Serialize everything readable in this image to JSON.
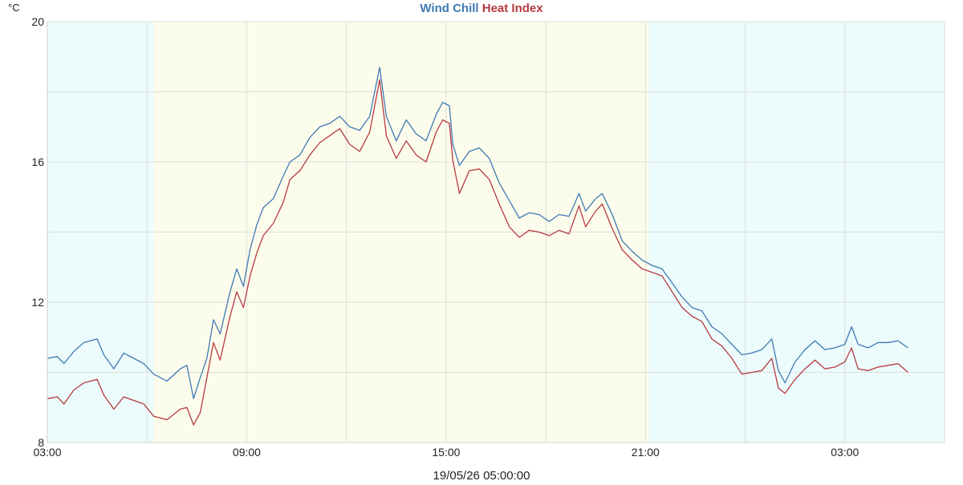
{
  "chart_data": {
    "type": "line",
    "title_parts": [
      {
        "text": "Wind Chill",
        "color": "#3f79b4"
      },
      {
        "text": "Heat Index",
        "color": "#b63a40"
      }
    ],
    "ylabel": "°C",
    "xlabel": "19/05/26 05:00:00",
    "ylim": [
      8,
      20
    ],
    "y_ticks": [
      "8",
      "12",
      "16",
      "20"
    ],
    "grid": true,
    "x_range_hours": [
      3,
      30
    ],
    "x_ticks": [
      {
        "h": 3,
        "label": "03:00"
      },
      {
        "h": 9,
        "label": "09:00"
      },
      {
        "h": 15,
        "label": "15:00"
      },
      {
        "h": 21,
        "label": "21:00"
      },
      {
        "h": 27,
        "label": "03:00"
      }
    ],
    "daylight_bands": [
      {
        "from": 3,
        "to": 6.2,
        "kind": "night"
      },
      {
        "from": 6.2,
        "to": 21.1,
        "kind": "day"
      },
      {
        "from": 21.1,
        "to": 30,
        "kind": "night"
      }
    ],
    "band_colors": {
      "night": "#ecfbfb",
      "day": "#fcfcec"
    },
    "series": [
      {
        "name": "Wind Chill",
        "color": "#3f79b4",
        "points": [
          [
            3.0,
            10.4
          ],
          [
            3.3,
            10.45
          ],
          [
            3.5,
            10.25
          ],
          [
            3.8,
            10.6
          ],
          [
            4.1,
            10.85
          ],
          [
            4.5,
            10.95
          ],
          [
            4.7,
            10.5
          ],
          [
            5.0,
            10.1
          ],
          [
            5.3,
            10.55
          ],
          [
            5.6,
            10.4
          ],
          [
            5.9,
            10.25
          ],
          [
            6.2,
            9.95
          ],
          [
            6.6,
            9.75
          ],
          [
            7.0,
            10.1
          ],
          [
            7.2,
            10.2
          ],
          [
            7.4,
            9.25
          ],
          [
            7.6,
            9.85
          ],
          [
            7.8,
            10.4
          ],
          [
            8.0,
            11.5
          ],
          [
            8.2,
            11.1
          ],
          [
            8.5,
            12.3
          ],
          [
            8.7,
            12.95
          ],
          [
            8.9,
            12.45
          ],
          [
            9.1,
            13.5
          ],
          [
            9.3,
            14.2
          ],
          [
            9.5,
            14.7
          ],
          [
            9.8,
            14.95
          ],
          [
            10.1,
            15.6
          ],
          [
            10.3,
            16.0
          ],
          [
            10.6,
            16.2
          ],
          [
            10.9,
            16.7
          ],
          [
            11.2,
            17.0
          ],
          [
            11.5,
            17.1
          ],
          [
            11.8,
            17.3
          ],
          [
            12.1,
            17.0
          ],
          [
            12.4,
            16.9
          ],
          [
            12.7,
            17.3
          ],
          [
            13.0,
            18.7
          ],
          [
            13.2,
            17.3
          ],
          [
            13.5,
            16.6
          ],
          [
            13.8,
            17.2
          ],
          [
            14.1,
            16.8
          ],
          [
            14.4,
            16.6
          ],
          [
            14.7,
            17.35
          ],
          [
            14.9,
            17.7
          ],
          [
            15.1,
            17.6
          ],
          [
            15.2,
            16.5
          ],
          [
            15.4,
            15.9
          ],
          [
            15.7,
            16.3
          ],
          [
            16.0,
            16.4
          ],
          [
            16.3,
            16.1
          ],
          [
            16.6,
            15.4
          ],
          [
            16.9,
            14.9
          ],
          [
            17.2,
            14.4
          ],
          [
            17.5,
            14.55
          ],
          [
            17.8,
            14.5
          ],
          [
            18.1,
            14.3
          ],
          [
            18.4,
            14.5
          ],
          [
            18.7,
            14.45
          ],
          [
            19.0,
            15.1
          ],
          [
            19.2,
            14.6
          ],
          [
            19.5,
            14.95
          ],
          [
            19.7,
            15.1
          ],
          [
            20.0,
            14.5
          ],
          [
            20.3,
            13.75
          ],
          [
            20.6,
            13.45
          ],
          [
            20.9,
            13.2
          ],
          [
            21.2,
            13.05
          ],
          [
            21.5,
            12.95
          ],
          [
            21.8,
            12.55
          ],
          [
            22.1,
            12.15
          ],
          [
            22.4,
            11.85
          ],
          [
            22.7,
            11.75
          ],
          [
            23.0,
            11.3
          ],
          [
            23.3,
            11.1
          ],
          [
            23.6,
            10.8
          ],
          [
            23.9,
            10.5
          ],
          [
            24.2,
            10.55
          ],
          [
            24.5,
            10.65
          ],
          [
            24.8,
            10.95
          ],
          [
            25.0,
            10.05
          ],
          [
            25.2,
            9.7
          ],
          [
            25.5,
            10.3
          ],
          [
            25.8,
            10.65
          ],
          [
            26.1,
            10.9
          ],
          [
            26.4,
            10.65
          ],
          [
            26.7,
            10.7
          ],
          [
            27.0,
            10.8
          ],
          [
            27.2,
            11.3
          ],
          [
            27.4,
            10.8
          ],
          [
            27.7,
            10.7
          ],
          [
            28.0,
            10.85
          ],
          [
            28.3,
            10.85
          ],
          [
            28.6,
            10.9
          ],
          [
            28.9,
            10.7
          ]
        ]
      },
      {
        "name": "Heat Index",
        "color": "#b63a40",
        "points": [
          [
            3.0,
            9.25
          ],
          [
            3.3,
            9.3
          ],
          [
            3.5,
            9.1
          ],
          [
            3.8,
            9.5
          ],
          [
            4.1,
            9.7
          ],
          [
            4.5,
            9.8
          ],
          [
            4.7,
            9.35
          ],
          [
            5.0,
            8.95
          ],
          [
            5.3,
            9.3
          ],
          [
            5.6,
            9.2
          ],
          [
            5.9,
            9.1
          ],
          [
            6.2,
            8.75
          ],
          [
            6.6,
            8.65
          ],
          [
            7.0,
            8.95
          ],
          [
            7.2,
            9.0
          ],
          [
            7.4,
            8.5
          ],
          [
            7.6,
            8.85
          ],
          [
            7.8,
            9.85
          ],
          [
            8.0,
            10.85
          ],
          [
            8.2,
            10.35
          ],
          [
            8.5,
            11.6
          ],
          [
            8.7,
            12.3
          ],
          [
            8.9,
            11.85
          ],
          [
            9.1,
            12.75
          ],
          [
            9.3,
            13.4
          ],
          [
            9.5,
            13.9
          ],
          [
            9.8,
            14.25
          ],
          [
            10.1,
            14.85
          ],
          [
            10.3,
            15.5
          ],
          [
            10.6,
            15.75
          ],
          [
            10.9,
            16.2
          ],
          [
            11.2,
            16.55
          ],
          [
            11.5,
            16.75
          ],
          [
            11.8,
            16.95
          ],
          [
            12.1,
            16.5
          ],
          [
            12.4,
            16.3
          ],
          [
            12.7,
            16.85
          ],
          [
            13.0,
            18.35
          ],
          [
            13.2,
            16.75
          ],
          [
            13.5,
            16.1
          ],
          [
            13.8,
            16.6
          ],
          [
            14.1,
            16.2
          ],
          [
            14.4,
            16.0
          ],
          [
            14.7,
            16.85
          ],
          [
            14.9,
            17.2
          ],
          [
            15.1,
            17.1
          ],
          [
            15.2,
            16.05
          ],
          [
            15.4,
            15.1
          ],
          [
            15.7,
            15.75
          ],
          [
            16.0,
            15.8
          ],
          [
            16.3,
            15.5
          ],
          [
            16.6,
            14.8
          ],
          [
            16.9,
            14.15
          ],
          [
            17.2,
            13.85
          ],
          [
            17.5,
            14.05
          ],
          [
            17.8,
            14.0
          ],
          [
            18.1,
            13.9
          ],
          [
            18.4,
            14.05
          ],
          [
            18.7,
            13.95
          ],
          [
            19.0,
            14.75
          ],
          [
            19.2,
            14.15
          ],
          [
            19.5,
            14.6
          ],
          [
            19.7,
            14.8
          ],
          [
            20.0,
            14.1
          ],
          [
            20.3,
            13.5
          ],
          [
            20.6,
            13.2
          ],
          [
            20.9,
            12.95
          ],
          [
            21.2,
            12.85
          ],
          [
            21.5,
            12.75
          ],
          [
            21.8,
            12.3
          ],
          [
            22.1,
            11.85
          ],
          [
            22.4,
            11.6
          ],
          [
            22.7,
            11.45
          ],
          [
            23.0,
            10.95
          ],
          [
            23.3,
            10.75
          ],
          [
            23.6,
            10.4
          ],
          [
            23.9,
            9.95
          ],
          [
            24.2,
            10.0
          ],
          [
            24.5,
            10.05
          ],
          [
            24.8,
            10.4
          ],
          [
            25.0,
            9.55
          ],
          [
            25.2,
            9.4
          ],
          [
            25.5,
            9.8
          ],
          [
            25.8,
            10.1
          ],
          [
            26.1,
            10.35
          ],
          [
            26.4,
            10.1
          ],
          [
            26.7,
            10.15
          ],
          [
            27.0,
            10.3
          ],
          [
            27.2,
            10.7
          ],
          [
            27.4,
            10.1
          ],
          [
            27.7,
            10.05
          ],
          [
            28.0,
            10.15
          ],
          [
            28.3,
            10.2
          ],
          [
            28.6,
            10.25
          ],
          [
            28.9,
            10.0
          ]
        ]
      }
    ]
  }
}
